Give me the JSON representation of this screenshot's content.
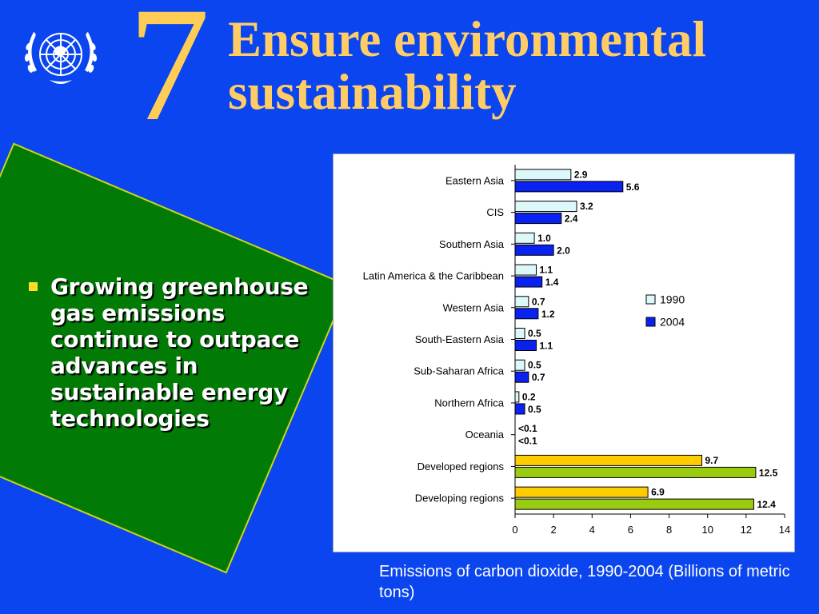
{
  "slide": {
    "number": "7",
    "title": "Ensure environmental sustainability",
    "bullet": "Growing greenhouse gas emissions continue to outpace advances in sustainable energy technologies",
    "caption": "Emissions of carbon dioxide, 1990-2004 (Billions of metric tons)",
    "logo": "un-emblem-icon",
    "colors": {
      "background": "#0b45ef",
      "title": "#ffcc66",
      "panel": "#027a06",
      "bullet": "#ffdd22"
    }
  },
  "chart_data": {
    "type": "bar",
    "orientation": "horizontal",
    "categories": [
      "Eastern Asia",
      "CIS",
      "Southern Asia",
      "Latin America & the Caribbean",
      "Western Asia",
      "South-Eastern Asia",
      "Sub-Saharan Africa",
      "Northern Africa",
      "Oceania",
      "Developed regions",
      "Developing regions"
    ],
    "series": [
      {
        "name": "1990",
        "values": [
          2.9,
          3.2,
          1.0,
          1.1,
          0.7,
          0.5,
          0.5,
          0.2,
          0.05,
          9.7,
          6.9
        ],
        "labels": [
          "2.9",
          "3.2",
          "1.0",
          "1.1",
          "0.7",
          "0.5",
          "0.5",
          "0.2",
          "<0.1",
          "9.7",
          "6.9"
        ],
        "color": "#ddf8fa",
        "aggregate_color": "#ffcc00"
      },
      {
        "name": "2004",
        "values": [
          5.6,
          2.4,
          2.0,
          1.4,
          1.2,
          1.1,
          0.7,
          0.5,
          0.05,
          12.5,
          12.4
        ],
        "labels": [
          "5.6",
          "2.4",
          "2.0",
          "1.4",
          "1.2",
          "1.1",
          "0.7",
          "0.5",
          "<0.1",
          "12.5",
          "12.4"
        ],
        "color": "#0a22f0",
        "aggregate_color": "#99cc11"
      }
    ],
    "aggregate_categories": [
      "Developed regions",
      "Developing regions"
    ],
    "xlim": [
      0,
      14
    ],
    "xticks": [
      0,
      2,
      4,
      6,
      8,
      10,
      12,
      14
    ],
    "grid": false,
    "legend_position": "right"
  }
}
